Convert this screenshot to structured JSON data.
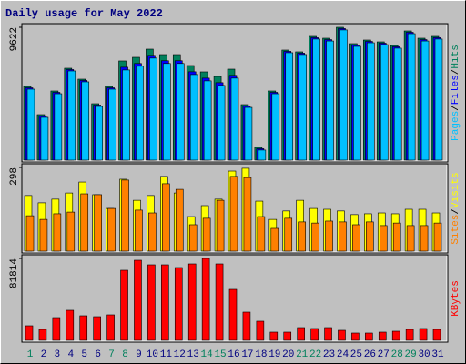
{
  "chart_data": [
    {
      "type": "bar",
      "title": "Daily usage for May 2022",
      "legend_separator": "/",
      "ylim": [
        0,
        9622
      ],
      "yticks": [
        9622
      ],
      "series": [
        {
          "name": "Hits",
          "color": "#00805c",
          "values": [
            5338,
            3295,
            5009,
            6656,
            5865,
            4086,
            5338,
            7184,
            7447,
            8040,
            7645,
            7645,
            6854,
            6393,
            6063,
            6590,
            4020,
            923,
            5009,
            7974,
            7843,
            8963,
            8831,
            9622,
            8436,
            8699,
            8567,
            8304,
            9358,
            8831,
            8963
          ]
        },
        {
          "name": "Files",
          "color": "#0000ff",
          "values": [
            5240,
            3200,
            4910,
            6560,
            5770,
            3990,
            5240,
            6730,
            7000,
            7590,
            7200,
            7200,
            6400,
            5940,
            5610,
            6140,
            3920,
            830,
            4910,
            7880,
            7750,
            8870,
            8730,
            9530,
            8340,
            8600,
            8470,
            8210,
            9260,
            8730,
            8870
          ]
        },
        {
          "name": "Pages",
          "color": "#00c0ff",
          "values": [
            5140,
            3100,
            4810,
            6460,
            5670,
            3890,
            5140,
            6530,
            6800,
            7390,
            7000,
            7000,
            6200,
            5740,
            5410,
            5940,
            3820,
            730,
            4810,
            7780,
            7650,
            8770,
            8630,
            9430,
            8240,
            8500,
            8370,
            8110,
            9160,
            8630,
            8770
          ]
        }
      ]
    },
    {
      "type": "bar",
      "legend_separator": "/",
      "ylim": [
        0,
        298
      ],
      "yticks": [
        298
      ],
      "series": [
        {
          "name": "Visits",
          "color": "#ffff00",
          "values": [
            198,
            172,
            185,
            207,
            246,
            201,
            152,
            256,
            181,
            198,
            266,
            207,
            123,
            162,
            185,
            285,
            295,
            178,
            113,
            143,
            181,
            152,
            149,
            143,
            130,
            133,
            136,
            133,
            149,
            149,
            136
          ]
        },
        {
          "name": "Sites",
          "color": "#ff8000",
          "values": [
            126,
            113,
            133,
            139,
            204,
            201,
            152,
            253,
            146,
            136,
            240,
            220,
            94,
            117,
            181,
            266,
            262,
            123,
            81,
            117,
            104,
            100,
            107,
            104,
            94,
            104,
            91,
            100,
            91,
            91,
            100
          ]
        }
      ]
    },
    {
      "type": "bar",
      "ylim": [
        0,
        81814
      ],
      "yticks": [
        81814
      ],
      "categories": [
        "1",
        "2",
        "3",
        "4",
        "5",
        "6",
        "7",
        "8",
        "9",
        "10",
        "11",
        "12",
        "13",
        "14",
        "15",
        "16",
        "17",
        "18",
        "19",
        "20",
        "21",
        "22",
        "23",
        "24",
        "25",
        "26",
        "27",
        "28",
        "29",
        "30",
        "31"
      ],
      "category_colors": [
        "#00805c",
        "#000080",
        "#000080",
        "#000080",
        "#000080",
        "#000080",
        "#00805c",
        "#00805c",
        "#000080",
        "#000080",
        "#000080",
        "#000080",
        "#000080",
        "#00805c",
        "#00805c",
        "#000080",
        "#000080",
        "#000080",
        "#000080",
        "#000080",
        "#00805c",
        "#00805c",
        "#000080",
        "#000080",
        "#000080",
        "#000080",
        "#000080",
        "#00805c",
        "#00805c",
        "#000080",
        "#000080"
      ],
      "series": [
        {
          "name": "KBytes",
          "color": "#ff0000",
          "values": [
            14545,
            10909,
            22726,
            29999,
            24544,
            23635,
            25453,
            69996,
            79996,
            75452,
            75452,
            72724,
            76360,
            81814,
            76360,
            50907,
            28181,
            19090,
            8181,
            8181,
            12727,
            11818,
            12727,
            10000,
            7272,
            7272,
            8181,
            9090,
            10909,
            11818,
            10909
          ]
        }
      ]
    }
  ]
}
